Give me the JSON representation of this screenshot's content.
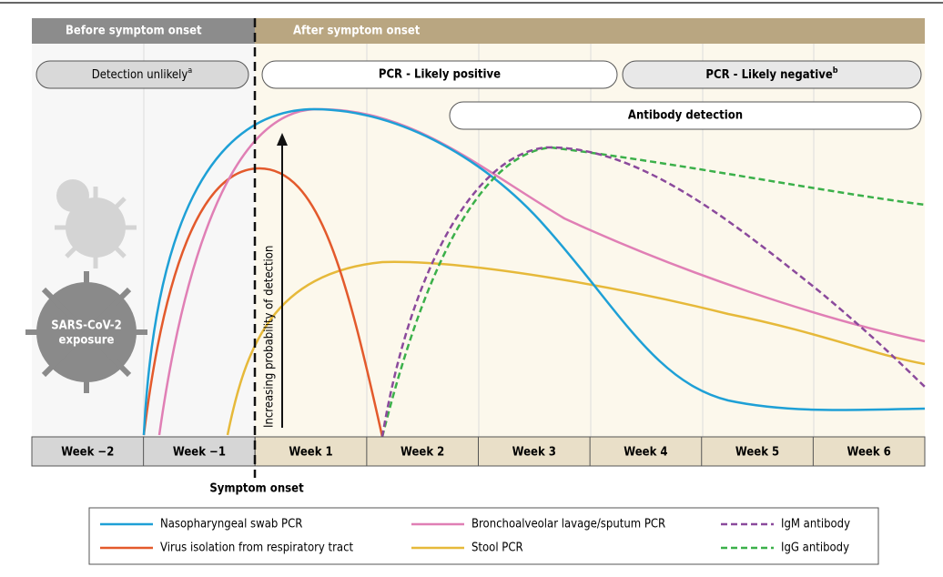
{
  "header": {
    "before": "Before symptom onset",
    "after": "After symptom onset"
  },
  "phases": [
    {
      "label": "Detection unlikely",
      "note": "a"
    },
    {
      "label": "PCR - Likely positive"
    },
    {
      "label": "PCR - Likely negative",
      "note": "b"
    },
    {
      "label": "Antibody detection"
    }
  ],
  "weeks": [
    "Week −2",
    "Week −1",
    "Week 1",
    "Week 2",
    "Week 3",
    "Week 4",
    "Week 5",
    "Week 6"
  ],
  "arrow_label": "Increasing probability of detection",
  "exposure": [
    "SARS-CoV-2",
    "exposure"
  ],
  "onset_label": "Symptom onset",
  "legend": [
    "Nasopharyngeal swab PCR",
    "Bronchoalveolar lavage/sputum PCR",
    "IgM antibody",
    "Virus isolation from respiratory tract",
    "Stool PCR",
    "IgG antibody"
  ]
}
